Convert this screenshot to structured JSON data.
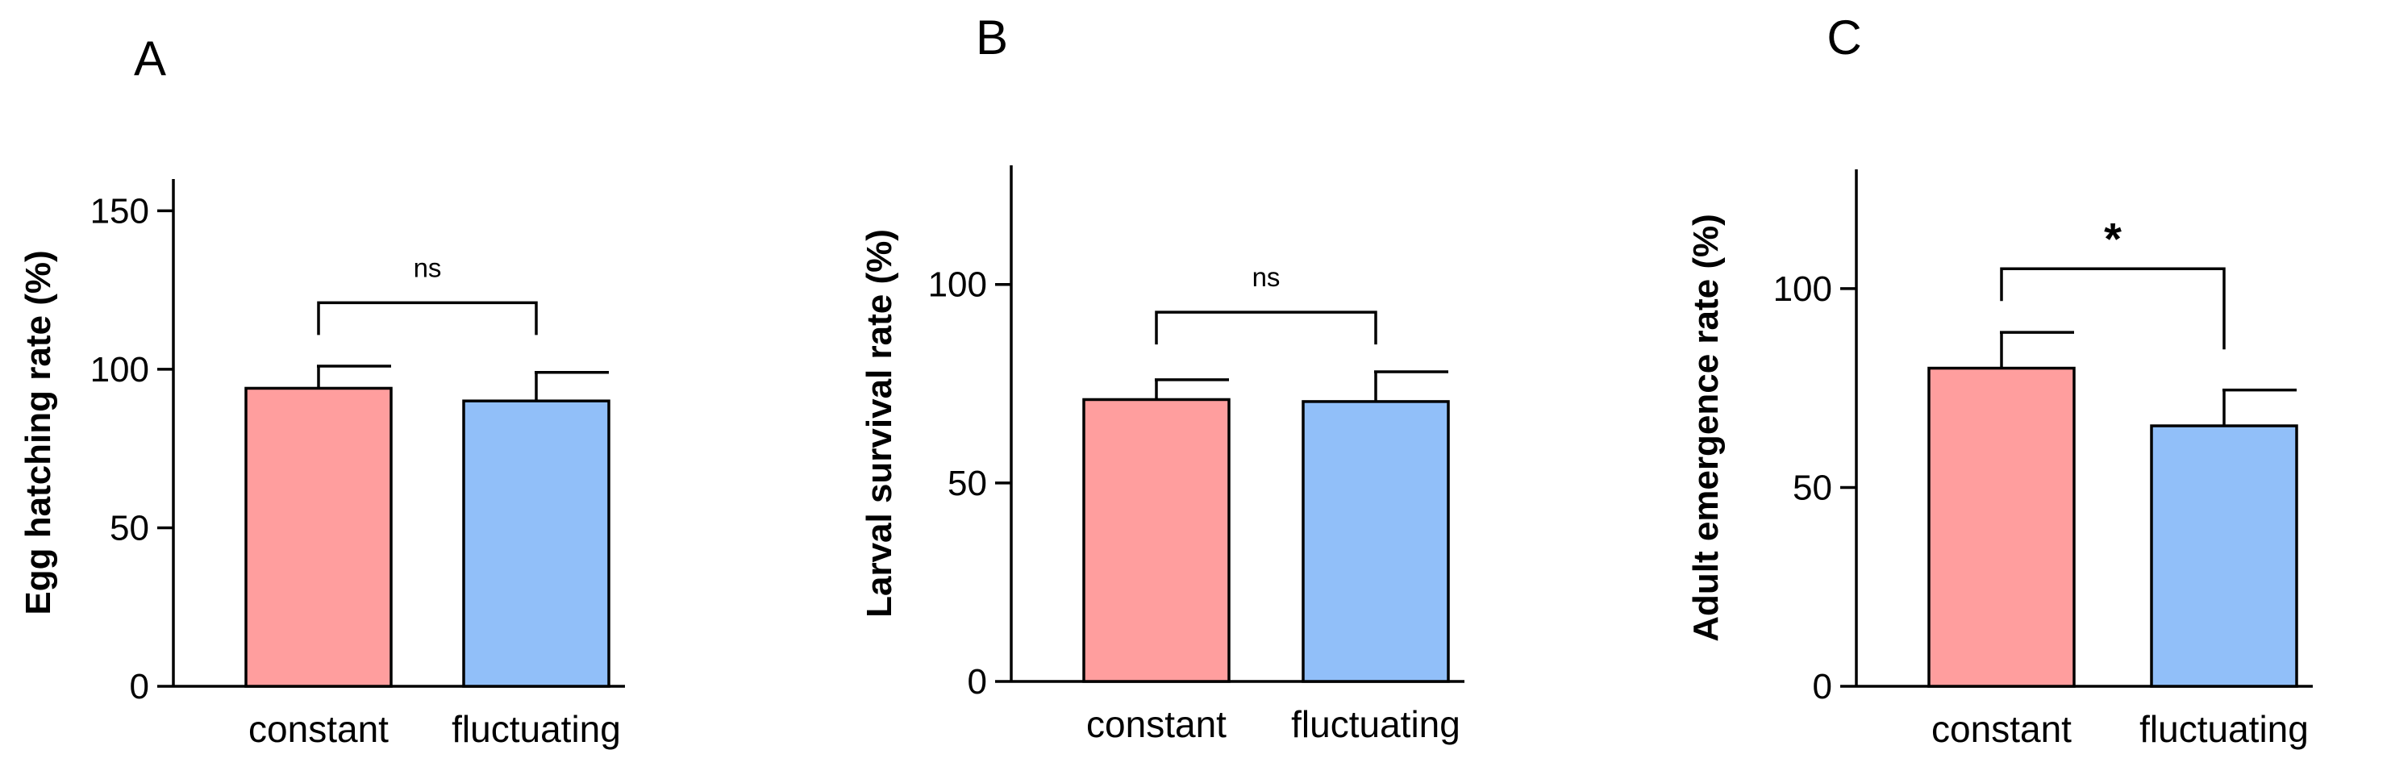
{
  "chart_data": [
    {
      "type": "bar",
      "panel": "A",
      "title": "",
      "xlabel": "",
      "ylabel": "Egg hatching rate (%)",
      "categories": [
        "constant",
        "fluctuating"
      ],
      "values": [
        94,
        90
      ],
      "errors": [
        7,
        9
      ],
      "colors": [
        "#FF9E9E",
        "#91BFF9"
      ],
      "ylim": [
        0,
        160
      ],
      "yticks": [
        0,
        50,
        100,
        150
      ],
      "significance": {
        "label": "ns",
        "bracket_y": 121
      }
    },
    {
      "type": "bar",
      "panel": "B",
      "title": "",
      "xlabel": "",
      "ylabel": "Larval survival rate (%)",
      "categories": [
        "constant",
        "fluctuating"
      ],
      "values": [
        71,
        70.5
      ],
      "errors": [
        5,
        7.5
      ],
      "colors": [
        "#FF9E9E",
        "#91BFF9"
      ],
      "ylim": [
        0,
        130
      ],
      "yticks": [
        0,
        50,
        100
      ],
      "significance": {
        "label": "ns",
        "bracket_y": 93
      }
    },
    {
      "type": "bar",
      "panel": "C",
      "title": "",
      "xlabel": "",
      "ylabel": "Adult emergence rate (%)",
      "categories": [
        "constant",
        "fluctuating"
      ],
      "values": [
        80,
        65.5
      ],
      "errors": [
        9,
        9
      ],
      "colors": [
        "#FF9E9E",
        "#91BFF9"
      ],
      "ylim": [
        0,
        130
      ],
      "yticks": [
        0,
        50,
        100
      ],
      "significance": {
        "label": "*",
        "bracket_y": 105
      }
    }
  ]
}
